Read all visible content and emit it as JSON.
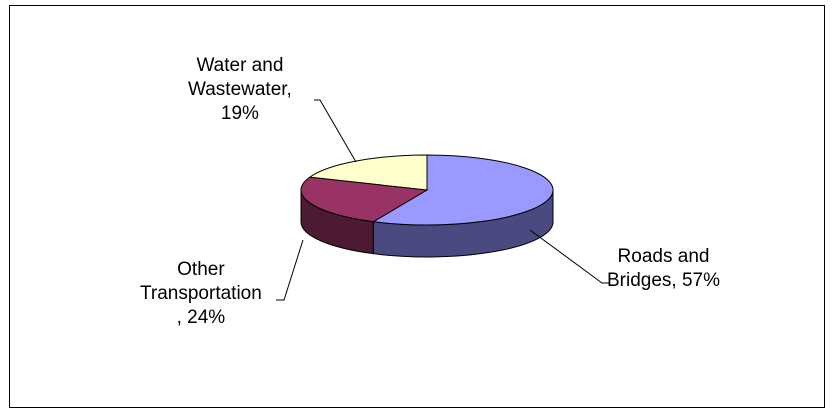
{
  "chart_data": {
    "type": "pie",
    "style": "3d",
    "title": "",
    "legend": "none",
    "slices": [
      {
        "label_lines": [
          "Roads and",
          "Bridges, 57%"
        ],
        "category": "Roads and Bridges",
        "value": 57,
        "color": "#9999ff",
        "side_color": "#4a4a80"
      },
      {
        "label_lines": [
          "Other",
          "Transportation",
          ", 24%"
        ],
        "category": "Other Transportation",
        "value": 24,
        "color": "#993366",
        "side_color": "#4d1a33"
      },
      {
        "label_lines": [
          "Water and",
          "Wastewater,",
          "19%"
        ],
        "category": "Water and Wastewater",
        "value": 19,
        "color": "#ffffcc",
        "side_color": "#808066"
      }
    ]
  }
}
